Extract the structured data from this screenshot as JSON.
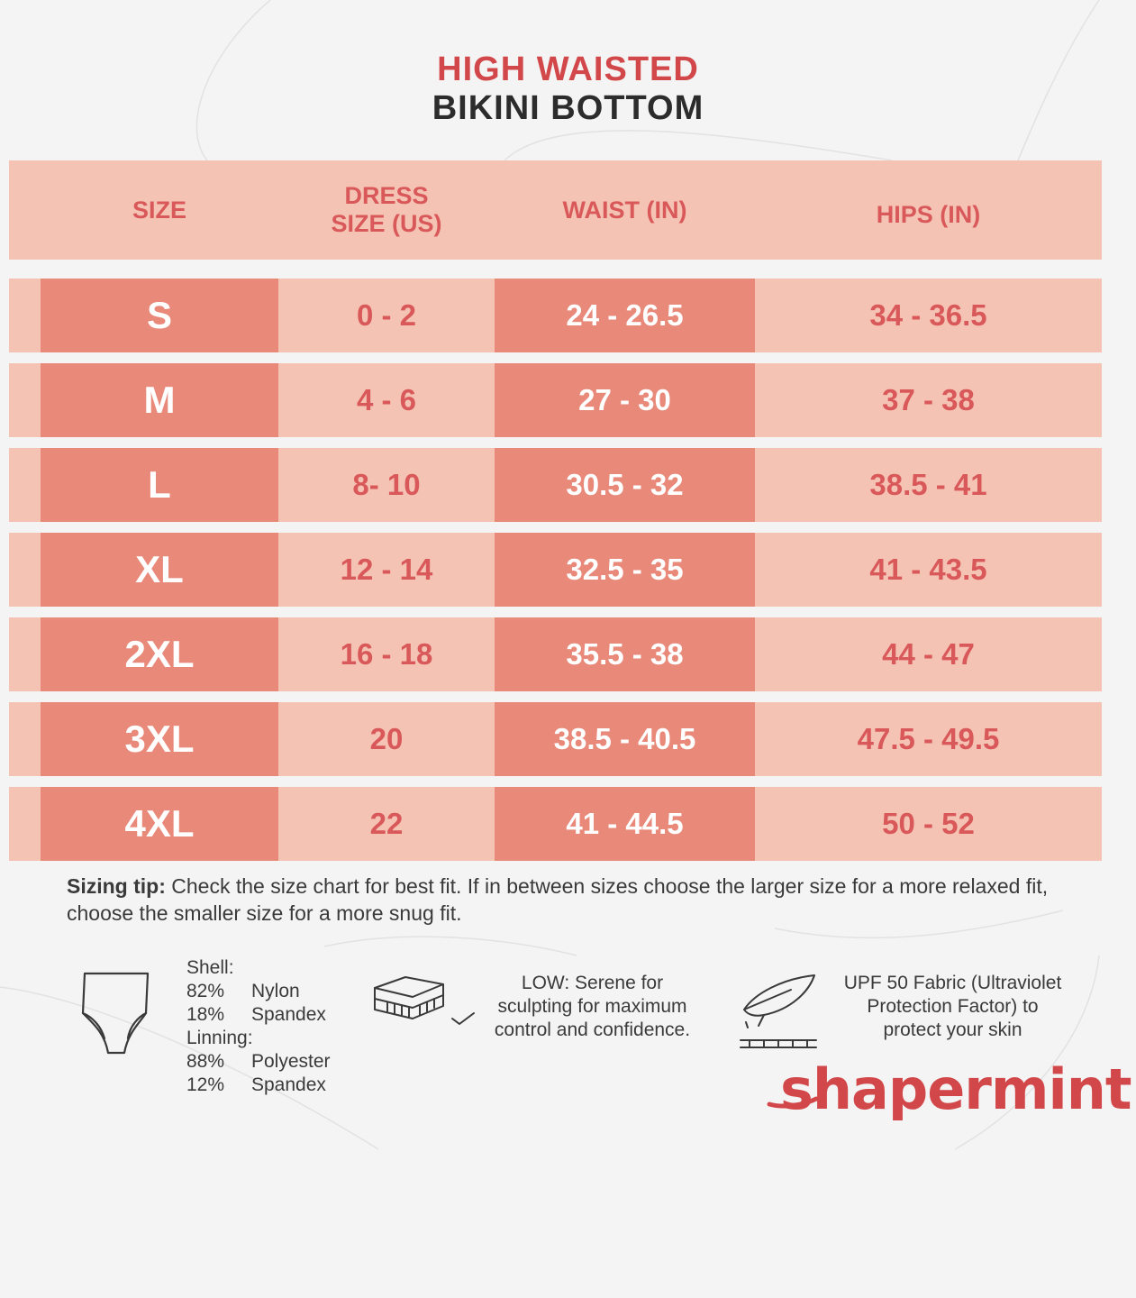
{
  "title": {
    "line1": "HIGH WAISTED",
    "line2": "BIKINI BOTTOM"
  },
  "chart_data": {
    "type": "table",
    "columns": [
      {
        "line1": "SIZE",
        "line2": ""
      },
      {
        "line1": "DRESS",
        "line2": "SIZE (US)"
      },
      {
        "line1": "WAIST (IN)",
        "line2": ""
      },
      {
        "line1": "HIPS (IN)",
        "line2": ""
      }
    ],
    "rows": [
      {
        "size": "S",
        "dress": "0 - 2",
        "waist": "24 - 26.5",
        "hips": "34 - 36.5"
      },
      {
        "size": "M",
        "dress": "4 - 6",
        "waist": "27 - 30",
        "hips": "37 - 38"
      },
      {
        "size": "L",
        "dress": "8- 10",
        "waist": "30.5 - 32",
        "hips": "38.5 - 41"
      },
      {
        "size": "XL",
        "dress": "12 - 14",
        "waist": "32.5 - 35",
        "hips": "41 - 43.5"
      },
      {
        "size": "2XL",
        "dress": "16 - 18",
        "waist": "35.5 - 38",
        "hips": "44 - 47"
      },
      {
        "size": "3XL",
        "dress": "20",
        "waist": "38.5 - 40.5",
        "hips": "47.5 - 49.5"
      },
      {
        "size": "4XL",
        "dress": "22",
        "waist": "41 - 44.5",
        "hips": "50 - 52"
      }
    ]
  },
  "tip": {
    "label": "Sizing tip:",
    "text": " Check the size chart for best fit. If in between sizes choose the larger size for a more relaxed fit, choose the smaller size for a more snug fit."
  },
  "fabric": {
    "shell_label": "Shell:",
    "shell": [
      {
        "pct": "82%",
        "name": "Nylon"
      },
      {
        "pct": "18%",
        "name": "Spandex"
      }
    ],
    "lining_label": "Linning:",
    "lining": [
      {
        "pct": "88%",
        "name": "Polyester"
      },
      {
        "pct": "12%",
        "name": "Spandex"
      }
    ]
  },
  "features": {
    "low": [
      "LOW: Serene for",
      "sculpting for maximum",
      "control and confidence."
    ],
    "upf": [
      "UPF 50 Fabric (Ultraviolet",
      "Protection Factor) to",
      "protect your skin"
    ]
  },
  "icons": [
    "briefs-icon",
    "fabric-layers-icon",
    "feather-icon"
  ],
  "brand": {
    "name": "shapermint"
  },
  "colors": {
    "accent": "#d2484a",
    "dark_cell": "#e8897a",
    "light_cell": "#f5c3b4",
    "text": "#3a3a3a"
  }
}
